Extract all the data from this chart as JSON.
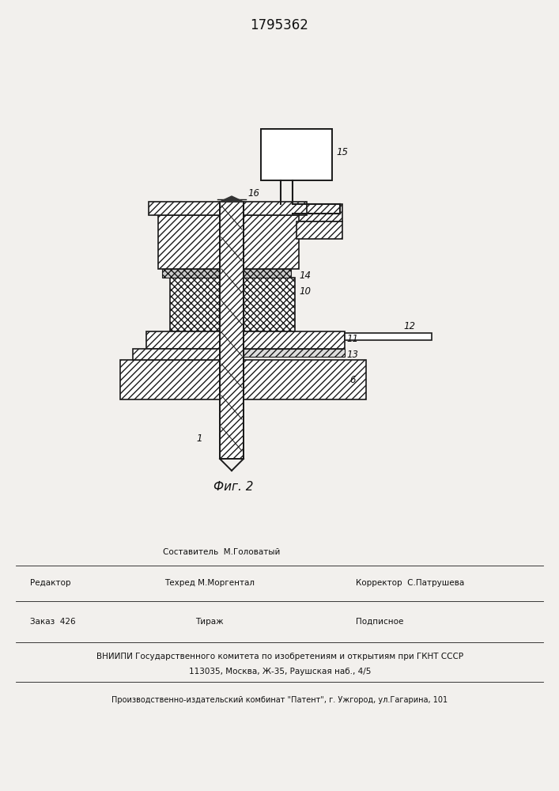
{
  "patent_number": "1795362",
  "fig_label": "Фиг. 2",
  "bg_color": "#f2f0ed",
  "line_color": "#1a1a1a",
  "footer": {
    "sestavitel": "Составитель  М.Головатый",
    "redaktor": "Редактор",
    "tehred": "Техред М.Моргентал",
    "korrektor_label": "Корректор",
    "korrektor": "С.Патрушева",
    "zakaz": "Заказ  426",
    "tirazh": "Тираж",
    "podpisnoe": "Подписное",
    "vniiipi": "ВНИИПИ Государственного комитета по изобретениям и открытиям при ГКНТ СССР",
    "address": "113035, Москва, Ж-35, Раушская наб., 4/5",
    "factory": "Производственно-издательский комбинат \"Патент\", г. Ужгород, ул.Гагарина, 101"
  }
}
